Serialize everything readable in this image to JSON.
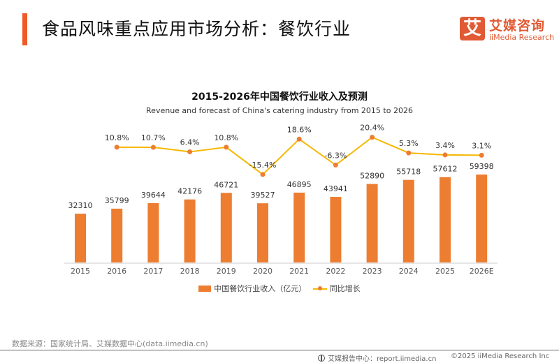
{
  "header": {
    "title": "食品风味重点应用市场分析：餐饮行业",
    "logo_mark": "艾",
    "logo_cn": "艾媒咨询",
    "logo_en": "iiMedia Research"
  },
  "chart_data": {
    "type": "bar",
    "title": "2015-2026年中国餐饮行业收入及预测",
    "subtitle": "Revenue and forecast of China's catering industry from 2015 to 2026",
    "categories": [
      "2015",
      "2016",
      "2017",
      "2018",
      "2019",
      "2020",
      "2021",
      "2022",
      "2023",
      "2024",
      "2025",
      "2026E"
    ],
    "series": [
      {
        "name": "中国餐饮行业收入（亿元）",
        "type": "bar",
        "color": "#ed7d31",
        "values": [
          32310,
          35799,
          39644,
          42176,
          46721,
          39527,
          46895,
          43941,
          52890,
          55718,
          57612,
          59398
        ],
        "labels": [
          "32310",
          "35799",
          "39644",
          "42176",
          "46721",
          "39527",
          "46895",
          "43941",
          "52890",
          "55718",
          "57612",
          "59398"
        ]
      },
      {
        "name": "同比增长",
        "type": "line",
        "color": "#f5b800",
        "marker_color": "#ed7d31",
        "values": [
          null,
          10.8,
          10.7,
          6.4,
          10.8,
          -15.4,
          18.6,
          -6.3,
          20.4,
          5.3,
          3.4,
          3.1
        ],
        "labels": [
          "",
          "10.8%",
          "10.7%",
          "6.4%",
          "10.8%",
          "-15.4%",
          "18.6%",
          "-6.3%",
          "20.4%",
          "5.3%",
          "3.4%",
          "3.1%"
        ]
      }
    ],
    "xlabel": "",
    "ylabel": "",
    "grid": false,
    "legend": "bottom-center"
  },
  "legend": {
    "bar_label": "中国餐饮行业收入（亿元）",
    "line_label": "同比增长"
  },
  "footer": {
    "source": "数据来源：国家统计局、艾媒数据中心(data.iimedia.cn)",
    "report_center": "艾媒报告中心：report.iimedia.cn",
    "copyright": "©2025  iiMedia Research  Inc"
  }
}
